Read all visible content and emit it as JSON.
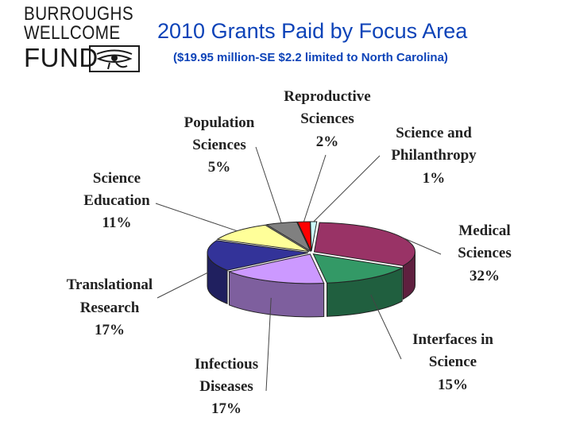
{
  "logo": {
    "line1": "BURROUGHS",
    "line2": "WELLCOME",
    "line3": "FUND",
    "mark": "eye-of-horus-icon"
  },
  "title": "2010 Grants Paid by Focus Area",
  "subtitle": "($19.95 million-SE $2.2 limited to North Carolina)",
  "chart_data": {
    "type": "pie",
    "style": "3d-exploded",
    "title": "2010 Grants Paid by Focus Area",
    "subtitle": "($19.95 million-SE $2.2 limited to North Carolina)",
    "unit": "%",
    "slices": [
      {
        "name": "Medical Sciences",
        "value": 32,
        "label": "32%",
        "color": "#993366"
      },
      {
        "name": "Interfaces in Science",
        "value": 15,
        "label": "15%",
        "color": "#339966"
      },
      {
        "name": "Infectious Diseases",
        "value": 17,
        "label": "17%",
        "color": "#cc99ff"
      },
      {
        "name": "Translational Research",
        "value": 17,
        "label": "17%",
        "color": "#333399"
      },
      {
        "name": "Science Education",
        "value": 11,
        "label": "11%",
        "color": "#ffff99"
      },
      {
        "name": "Population Sciences",
        "value": 5,
        "label": "5%",
        "color": "#808080"
      },
      {
        "name": "Reproductive Sciences",
        "value": 2,
        "label": "2%",
        "color": "#ff0000"
      },
      {
        "name": "Science and Philanthropy",
        "value": 1,
        "label": "1%",
        "color": "#ccffff"
      }
    ]
  }
}
